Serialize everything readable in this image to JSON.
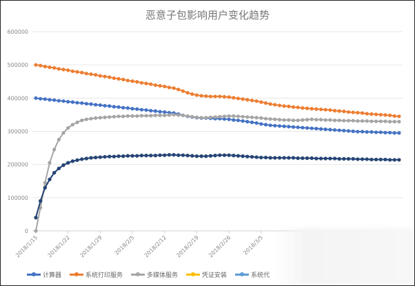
{
  "chart_data": {
    "type": "line",
    "title": "恶意子包影响用户变化趋势",
    "x_start": "2018/1/15",
    "x_tick_labels": [
      "2018/1/15",
      "2018/1/22",
      "2018/1/29",
      "2018/2/5",
      "2018/2/12",
      "2018/2/19",
      "2018/2/26",
      "2018/3/5"
    ],
    "y_tick_labels": [
      "0",
      "100000",
      "200000",
      "300000",
      "400000",
      "500000",
      "600000"
    ],
    "ylim": [
      0,
      600000
    ],
    "grid": true,
    "legend_placement": "bottom",
    "value_unit": "thousands",
    "series": [
      {
        "name": "计算器",
        "color": "#4472c4",
        "values": [
          400,
          398,
          397,
          395,
          394,
          392,
          391,
          389,
          388,
          386,
          385,
          383,
          382,
          380,
          379,
          377,
          376,
          374,
          373,
          371,
          370,
          368,
          367,
          365,
          364,
          362,
          361,
          359,
          358,
          356,
          355,
          352,
          348,
          345,
          343,
          341,
          340,
          340,
          339,
          338,
          338,
          337,
          336,
          334,
          333,
          331,
          329,
          327,
          325,
          322,
          320,
          318,
          317,
          316,
          315,
          314,
          313,
          312,
          311,
          310,
          309,
          308,
          307,
          306,
          305,
          304,
          303,
          302,
          301,
          300,
          299,
          299,
          298,
          298,
          297,
          297,
          296,
          296,
          295,
          295
        ]
      },
      {
        "name": "系统打印服务",
        "color": "#ed7d31",
        "values": [
          500,
          498,
          495,
          493,
          491,
          488,
          486,
          484,
          481,
          479,
          477,
          474,
          472,
          470,
          467,
          465,
          463,
          460,
          458,
          456,
          453,
          451,
          449,
          446,
          444,
          442,
          439,
          437,
          435,
          432,
          430,
          426,
          421,
          416,
          412,
          409,
          407,
          406,
          405,
          405,
          405,
          404,
          403,
          401,
          399,
          397,
          395,
          393,
          391,
          388,
          385,
          382,
          380,
          378,
          376,
          375,
          373,
          372,
          370,
          369,
          368,
          367,
          366,
          365,
          364,
          362,
          361,
          360,
          358,
          357,
          356,
          355,
          353,
          352,
          351,
          350,
          349,
          348,
          346,
          345
        ]
      },
      {
        "name": "多媒体服务",
        "color": "#a5a5a5",
        "values": [
          0,
          70,
          145,
          205,
          245,
          275,
          295,
          310,
          320,
          327,
          333,
          336,
          338,
          340,
          341,
          342,
          343,
          344,
          345,
          345,
          346,
          346,
          346,
          347,
          347,
          347,
          348,
          348,
          348,
          349,
          350,
          349,
          348,
          346,
          344,
          342,
          341,
          341,
          342,
          343,
          344,
          345,
          346,
          346,
          345,
          344,
          343,
          342,
          341,
          340,
          338,
          337,
          336,
          335,
          334,
          334,
          333,
          333,
          334,
          335,
          336,
          335,
          335,
          334,
          334,
          333,
          333,
          332,
          332,
          332,
          331,
          331,
          331,
          330,
          330,
          330,
          330,
          329,
          329,
          329
        ]
      },
      {
        "name": "凭证安装",
        "color": "#ffc000",
        "values": [
          40,
          90,
          130,
          155,
          175,
          188,
          198,
          205,
          210,
          213,
          216,
          218,
          220,
          221,
          222,
          223,
          224,
          224,
          225,
          225,
          226,
          226,
          226,
          227,
          227,
          227,
          227,
          228,
          228,
          229,
          229,
          228,
          228,
          227,
          226,
          225,
          225,
          225,
          226,
          227,
          228,
          228,
          228,
          227,
          226,
          225,
          224,
          223,
          222,
          221,
          221,
          220,
          220,
          220,
          220,
          220,
          220,
          219,
          219,
          219,
          219,
          218,
          218,
          218,
          218,
          218,
          217,
          217,
          217,
          217,
          216,
          216,
          216,
          215,
          215,
          215,
          215,
          214,
          214,
          214
        ]
      },
      {
        "name": "系统代",
        "color": "#5b9bd5",
        "values": [
          40,
          90,
          130,
          155,
          175,
          188,
          198,
          205,
          210,
          213,
          216,
          218,
          220,
          221,
          222,
          223,
          224,
          224,
          225,
          225,
          226,
          226,
          226,
          227,
          227,
          227,
          227,
          228,
          228,
          229,
          229,
          228,
          228,
          227,
          226,
          225,
          225,
          225,
          226,
          227,
          228,
          228,
          228,
          227,
          226,
          225,
          224,
          223,
          222,
          221,
          221,
          220,
          220,
          220,
          220,
          220,
          220,
          219,
          219,
          219,
          219,
          218,
          218,
          218,
          218,
          218,
          217,
          217,
          217,
          217,
          216,
          216,
          216,
          215,
          215,
          215,
          215,
          214,
          214,
          214
        ]
      },
      {
        "color": "#264478",
        "values": [
          40,
          90,
          130,
          155,
          175,
          188,
          198,
          205,
          210,
          213,
          216,
          218,
          220,
          221,
          222,
          223,
          224,
          224,
          225,
          225,
          226,
          226,
          226,
          227,
          227,
          227,
          227,
          228,
          228,
          229,
          229,
          228,
          228,
          227,
          226,
          225,
          225,
          225,
          226,
          227,
          228,
          228,
          228,
          227,
          226,
          225,
          224,
          223,
          222,
          221,
          221,
          220,
          220,
          220,
          220,
          220,
          220,
          219,
          219,
          219,
          219,
          218,
          218,
          218,
          218,
          218,
          217,
          217,
          217,
          217,
          216,
          216,
          216,
          215,
          215,
          215,
          215,
          214,
          214,
          214
        ]
      }
    ]
  }
}
